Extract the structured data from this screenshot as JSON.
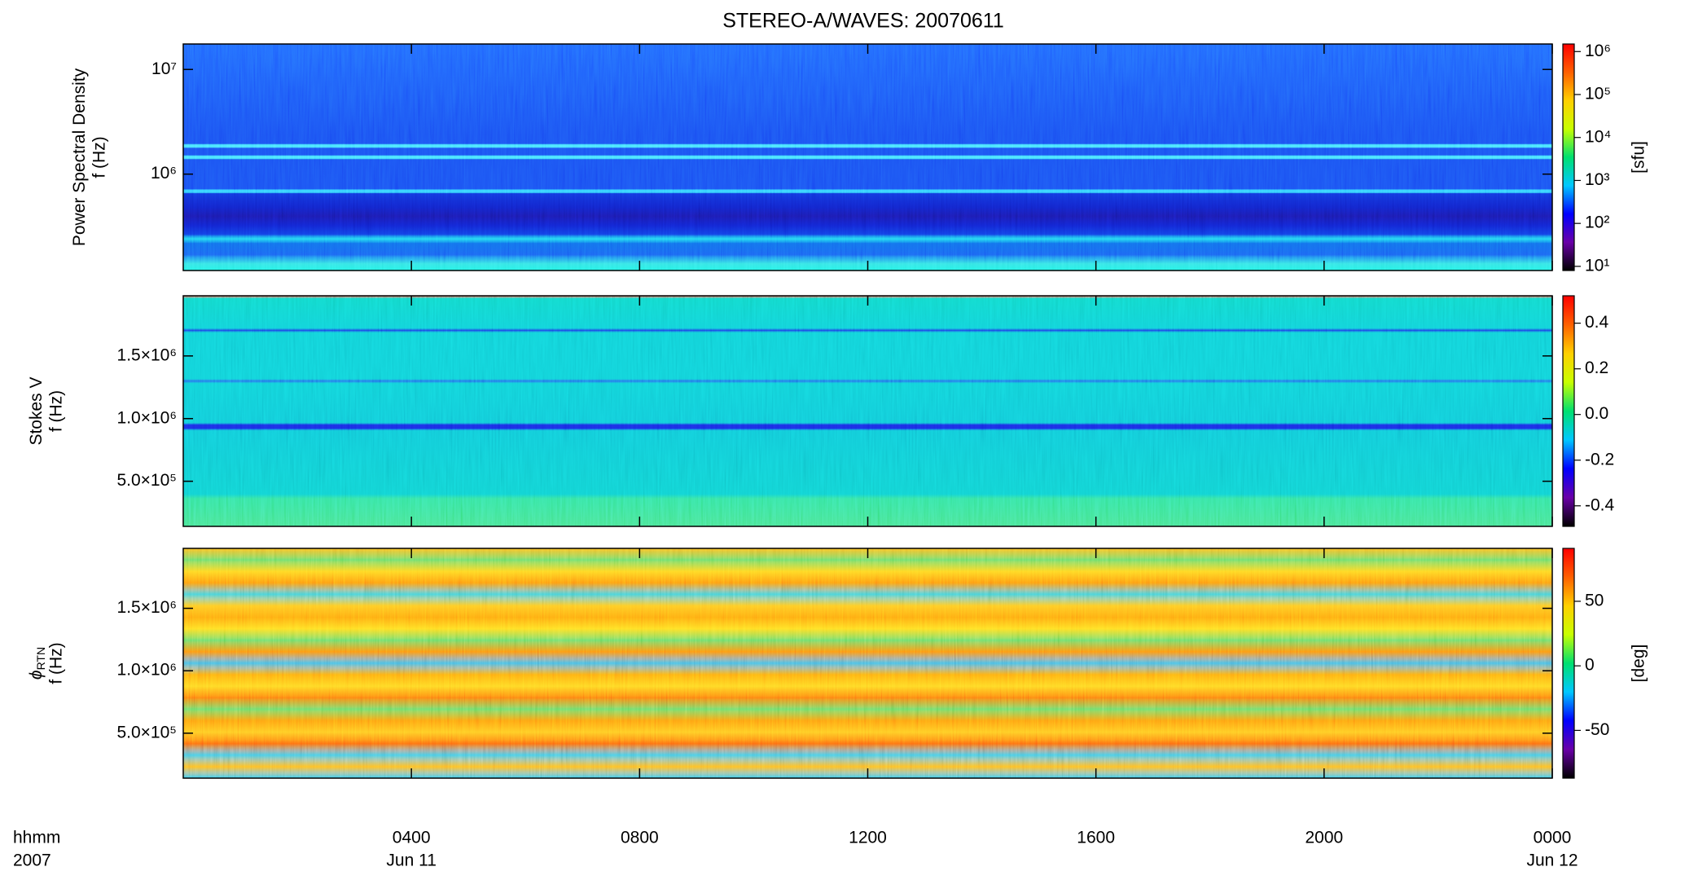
{
  "chart_data": {
    "type": "heatmap",
    "title": "STEREO-A/WAVES: 20070611",
    "x_label": "hhmm",
    "x_sublabel": "2007",
    "xlim": [
      0,
      24
    ],
    "xticks": [
      {
        "value": 4,
        "label": "0400"
      },
      {
        "value": 8,
        "label": "0800"
      },
      {
        "value": 12,
        "label": "1200"
      },
      {
        "value": 16,
        "label": "1600"
      },
      {
        "value": 20,
        "label": "2000"
      },
      {
        "value": 24,
        "label": "0000"
      }
    ],
    "xtick_dates": [
      "Jun 11",
      null,
      null,
      null,
      null,
      "Jun 12"
    ],
    "colormap": [
      "#000000",
      "#6a00a8",
      "#0000ff",
      "#00c8ff",
      "#00e070",
      "#c8ff00",
      "#ffd000",
      "#ff6000",
      "#ff0000"
    ],
    "panels": [
      {
        "y_label": "Power Spectral Density",
        "y_sublabel": "f (Hz)",
        "ylog": true,
        "ylim": [
          120000,
          17500000
        ],
        "yticks": [
          {
            "value": 1000000,
            "label": "10⁶"
          },
          {
            "value": 10000000,
            "label": "10⁷"
          }
        ],
        "colorbar_label": "[sfu]",
        "clog": true,
        "clim": [
          8,
          1500000
        ],
        "cticks": [
          {
            "value": 10,
            "label": "10¹"
          },
          {
            "value": 100,
            "label": "10²"
          },
          {
            "value": 1000,
            "label": "10³"
          },
          {
            "value": 10000,
            "label": "10⁴"
          },
          {
            "value": 100000,
            "label": "10⁵"
          },
          {
            "value": 1000000,
            "label": "10⁶"
          }
        ]
      },
      {
        "y_label": "Stokes V",
        "y_sublabel": "f (Hz)",
        "ylim": [
          140000,
          1980000
        ],
        "yticks": [
          {
            "value": 500000,
            "label": "5.0×10⁵"
          },
          {
            "value": 1000000,
            "label": "1.0×10⁶"
          },
          {
            "value": 1500000,
            "label": "1.5×10⁶"
          }
        ],
        "clim": [
          -0.49,
          0.52
        ],
        "cticks": [
          -0.4,
          -0.2,
          {
            "value": 0,
            "label": "0.0"
          },
          0.2,
          0.4
        ]
      },
      {
        "y_label": "ϕ",
        "y_label_sub": "RTN",
        "y_sublabel": "f (Hz)",
        "ylim": [
          140000,
          1980000
        ],
        "yticks": [
          {
            "value": 500000,
            "label": "5.0×10⁵"
          },
          {
            "value": 1000000,
            "label": "1.0×10⁶"
          },
          {
            "value": 1500000,
            "label": "1.5×10⁶"
          }
        ],
        "colorbar_label": "[deg]",
        "clim": [
          -87,
          91
        ],
        "cticks": [
          -50,
          0,
          50
        ]
      }
    ]
  }
}
